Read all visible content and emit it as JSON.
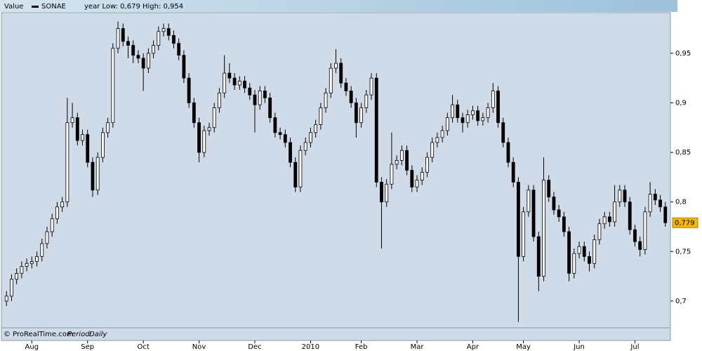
{
  "chart_data": {
    "type": "candlestick",
    "header": {
      "label": "Value",
      "name": "SONAE",
      "range_text": "year Low: 0,679 High: 0,954"
    },
    "source": "© ProRealTime.com",
    "period_label": "Period:",
    "period": "Daily",
    "up_color": "#ffffff",
    "down_color": "#000000",
    "ylim": [
      0.673,
      0.991
    ],
    "yticks": [
      {
        "value": 0.7,
        "label": "0,7"
      },
      {
        "value": 0.75,
        "label": "0,75"
      },
      {
        "value": 0.8,
        "label": "0,8"
      },
      {
        "value": 0.85,
        "label": "0,85"
      },
      {
        "value": 0.9,
        "label": "0,9"
      },
      {
        "value": 0.95,
        "label": "0,95"
      }
    ],
    "xlim": [
      -1,
      131
    ],
    "xticks": [
      {
        "value": 5,
        "label": "Aug"
      },
      {
        "value": 16,
        "label": "Sep"
      },
      {
        "value": 27,
        "label": "Oct"
      },
      {
        "value": 38,
        "label": "Nov"
      },
      {
        "value": 49,
        "label": "Dec"
      },
      {
        "value": 60,
        "label": "2010"
      },
      {
        "value": 70,
        "label": "Feb"
      },
      {
        "value": 81,
        "label": "Mar"
      },
      {
        "value": 92,
        "label": "Apr"
      },
      {
        "value": 102,
        "label": "May"
      },
      {
        "value": 113,
        "label": "Jun"
      },
      {
        "value": 124,
        "label": "Jul"
      }
    ],
    "last_price": {
      "value": 0.779,
      "label": "0,779"
    },
    "open": [
      0.7,
      0.705,
      0.722,
      0.728,
      0.735,
      0.738,
      0.74,
      0.745,
      0.758,
      0.77,
      0.783,
      0.795,
      0.8,
      0.88,
      0.885,
      0.862,
      0.868,
      0.84,
      0.812,
      0.845,
      0.87,
      0.88,
      0.955,
      0.975,
      0.962,
      0.958,
      0.948,
      0.945,
      0.935,
      0.95,
      0.958,
      0.972,
      0.975,
      0.968,
      0.96,
      0.948,
      0.925,
      0.9,
      0.88,
      0.85,
      0.872,
      0.875,
      0.895,
      0.91,
      0.93,
      0.925,
      0.918,
      0.922,
      0.915,
      0.908,
      0.898,
      0.912,
      0.905,
      0.885,
      0.87,
      0.868,
      0.86,
      0.84,
      0.815,
      0.852,
      0.86,
      0.87,
      0.878,
      0.895,
      0.91,
      0.935,
      0.94,
      0.92,
      0.912,
      0.9,
      0.88,
      0.895,
      0.908,
      0.925,
      0.82,
      0.8,
      0.818,
      0.838,
      0.842,
      0.852,
      0.832,
      0.815,
      0.822,
      0.83,
      0.845,
      0.86,
      0.865,
      0.872,
      0.885,
      0.898,
      0.885,
      0.88,
      0.888,
      0.892,
      0.882,
      0.885,
      0.895,
      0.912,
      0.88,
      0.86,
      0.84,
      0.82,
      0.745,
      0.79,
      0.812,
      0.765,
      0.725,
      0.822,
      0.805,
      0.792,
      0.785,
      0.77,
      0.728,
      0.748,
      0.755,
      0.745,
      0.738,
      0.762,
      0.778,
      0.785,
      0.78,
      0.8,
      0.812,
      0.8,
      0.772,
      0.76,
      0.752,
      0.79,
      0.808,
      0.802,
      0.795
    ],
    "high": [
      0.71,
      0.727,
      0.733,
      0.74,
      0.743,
      0.745,
      0.75,
      0.763,
      0.775,
      0.788,
      0.8,
      0.805,
      0.905,
      0.9,
      0.89,
      0.873,
      0.873,
      0.845,
      0.85,
      0.875,
      0.885,
      0.96,
      0.982,
      0.98,
      0.967,
      0.963,
      0.953,
      0.95,
      0.955,
      0.963,
      0.977,
      0.98,
      0.98,
      0.973,
      0.965,
      0.953,
      0.93,
      0.905,
      0.885,
      0.877,
      0.88,
      0.9,
      0.915,
      0.948,
      0.94,
      0.93,
      0.927,
      0.927,
      0.92,
      0.913,
      0.917,
      0.917,
      0.91,
      0.89,
      0.875,
      0.873,
      0.865,
      0.845,
      0.857,
      0.865,
      0.875,
      0.883,
      0.9,
      0.915,
      0.94,
      0.954,
      0.945,
      0.925,
      0.917,
      0.905,
      0.9,
      0.913,
      0.93,
      0.93,
      0.825,
      0.823,
      0.87,
      0.847,
      0.857,
      0.857,
      0.837,
      0.827,
      0.835,
      0.85,
      0.865,
      0.87,
      0.877,
      0.89,
      0.908,
      0.903,
      0.89,
      0.893,
      0.897,
      0.897,
      0.89,
      0.9,
      0.92,
      0.917,
      0.885,
      0.865,
      0.845,
      0.825,
      0.795,
      0.817,
      0.817,
      0.77,
      0.845,
      0.827,
      0.81,
      0.797,
      0.79,
      0.775,
      0.753,
      0.76,
      0.76,
      0.75,
      0.767,
      0.783,
      0.79,
      0.79,
      0.817,
      0.817,
      0.817,
      0.805,
      0.777,
      0.765,
      0.795,
      0.82,
      0.813,
      0.807,
      0.8
    ],
    "low": [
      0.695,
      0.7,
      0.717,
      0.723,
      0.73,
      0.733,
      0.735,
      0.74,
      0.753,
      0.765,
      0.778,
      0.79,
      0.795,
      0.875,
      0.857,
      0.857,
      0.835,
      0.805,
      0.807,
      0.84,
      0.865,
      0.875,
      0.95,
      0.957,
      0.945,
      0.94,
      0.94,
      0.912,
      0.93,
      0.945,
      0.953,
      0.967,
      0.963,
      0.955,
      0.943,
      0.92,
      0.895,
      0.875,
      0.84,
      0.845,
      0.867,
      0.87,
      0.89,
      0.905,
      0.92,
      0.913,
      0.913,
      0.91,
      0.903,
      0.87,
      0.893,
      0.9,
      0.88,
      0.865,
      0.863,
      0.855,
      0.835,
      0.81,
      0.81,
      0.847,
      0.855,
      0.865,
      0.873,
      0.89,
      0.905,
      0.93,
      0.915,
      0.907,
      0.895,
      0.865,
      0.875,
      0.89,
      0.903,
      0.815,
      0.753,
      0.795,
      0.813,
      0.833,
      0.837,
      0.827,
      0.81,
      0.81,
      0.817,
      0.825,
      0.84,
      0.855,
      0.86,
      0.867,
      0.88,
      0.88,
      0.87,
      0.875,
      0.883,
      0.877,
      0.877,
      0.88,
      0.89,
      0.875,
      0.855,
      0.835,
      0.815,
      0.679,
      0.74,
      0.785,
      0.76,
      0.71,
      0.72,
      0.8,
      0.787,
      0.78,
      0.765,
      0.72,
      0.723,
      0.743,
      0.74,
      0.73,
      0.733,
      0.757,
      0.773,
      0.775,
      0.775,
      0.795,
      0.795,
      0.767,
      0.755,
      0.745,
      0.747,
      0.785,
      0.797,
      0.79,
      0.775
    ],
    "close": [
      0.705,
      0.722,
      0.728,
      0.735,
      0.738,
      0.74,
      0.745,
      0.758,
      0.77,
      0.783,
      0.795,
      0.8,
      0.88,
      0.885,
      0.862,
      0.868,
      0.84,
      0.812,
      0.845,
      0.87,
      0.88,
      0.955,
      0.975,
      0.962,
      0.958,
      0.948,
      0.945,
      0.935,
      0.95,
      0.958,
      0.972,
      0.975,
      0.968,
      0.96,
      0.948,
      0.925,
      0.9,
      0.88,
      0.85,
      0.872,
      0.875,
      0.895,
      0.91,
      0.93,
      0.925,
      0.918,
      0.922,
      0.915,
      0.908,
      0.898,
      0.912,
      0.905,
      0.885,
      0.87,
      0.868,
      0.86,
      0.84,
      0.815,
      0.852,
      0.86,
      0.87,
      0.878,
      0.895,
      0.91,
      0.935,
      0.94,
      0.92,
      0.912,
      0.9,
      0.88,
      0.895,
      0.908,
      0.925,
      0.82,
      0.8,
      0.818,
      0.838,
      0.842,
      0.852,
      0.832,
      0.815,
      0.822,
      0.83,
      0.845,
      0.86,
      0.865,
      0.872,
      0.885,
      0.898,
      0.885,
      0.88,
      0.888,
      0.892,
      0.882,
      0.885,
      0.895,
      0.912,
      0.88,
      0.86,
      0.84,
      0.82,
      0.745,
      0.79,
      0.812,
      0.765,
      0.725,
      0.822,
      0.805,
      0.792,
      0.785,
      0.77,
      0.728,
      0.748,
      0.755,
      0.745,
      0.738,
      0.762,
      0.778,
      0.785,
      0.78,
      0.8,
      0.812,
      0.8,
      0.772,
      0.76,
      0.752,
      0.79,
      0.808,
      0.802,
      0.795,
      0.779
    ]
  }
}
